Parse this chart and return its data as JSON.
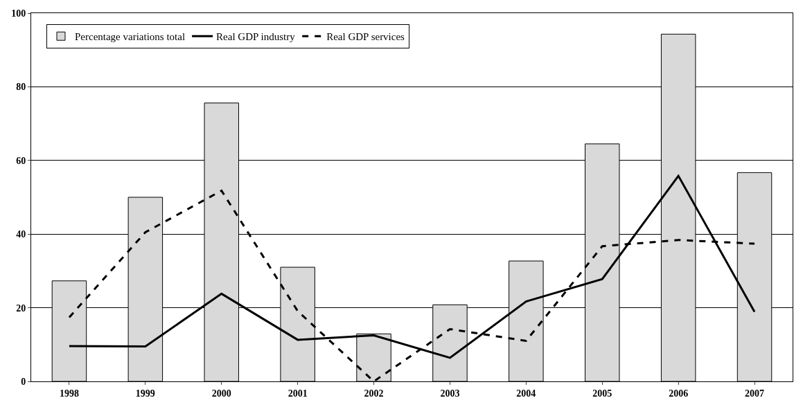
{
  "chart_data": {
    "type": "bar",
    "categories": [
      "1998",
      "1999",
      "2000",
      "2001",
      "2002",
      "2003",
      "2004",
      "2005",
      "2006",
      "2007"
    ],
    "series": [
      {
        "name": "Percentage variations total",
        "color": "#d9d9d9",
        "values": [
          27.3,
          50,
          75.6,
          31,
          12.9,
          20.8,
          32.7,
          64.5,
          94.3,
          56.7
        ]
      },
      {
        "name": "Real GDP industry",
        "type": "line",
        "color": "#000000",
        "line_style": "solid",
        "values": [
          9.6,
          9.5,
          23.8,
          11.3,
          12.5,
          6.4,
          21.7,
          27.8,
          55.8,
          18.9
        ]
      },
      {
        "name": "Real GDP services",
        "type": "line",
        "color": "#000000",
        "line_style": "dashed",
        "values": [
          17.4,
          40.5,
          51.8,
          19.1,
          0,
          14.2,
          11,
          36.7,
          38.4,
          37.4
        ]
      }
    ],
    "ylim": [
      0,
      100
    ],
    "yticks": [
      0,
      20,
      40,
      60,
      80,
      100
    ],
    "grid": "y",
    "legend": "top left",
    "marker": "none"
  }
}
